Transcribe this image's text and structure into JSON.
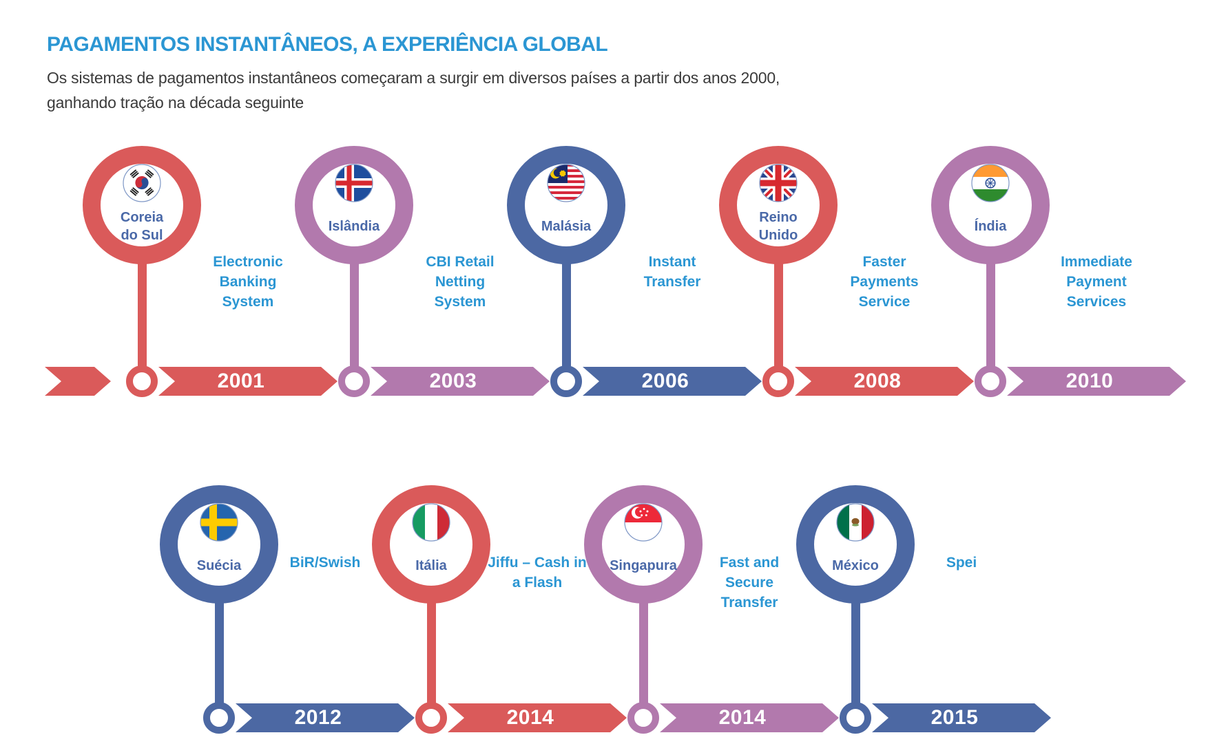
{
  "header": {
    "title": "PAGAMENTOS INSTANTÂNEOS, A EXPERIÊNCIA GLOBAL",
    "subtitle_line1": "Os sistemas de pagamentos instantâneos começaram a surgir em diversos países a partir dos anos 2000,",
    "subtitle_line2": "ganhando tração na década seguinte"
  },
  "palette": {
    "red": "#da5a5a",
    "purple": "#b279ad",
    "blue": "#4c68a3",
    "country_label_text": "#4a69a8",
    "accent_text": "#2b96d3",
    "subtitle_text": "#3a3a3a",
    "year_text": "#ffffff"
  },
  "timeline": {
    "rows": [
      {
        "has_leading_arrow": true,
        "items": [
          {
            "country": "Coreia do Sul",
            "country_lines": [
              "Coreia",
              "do Sul"
            ],
            "flag": "south-korea",
            "color": "red",
            "system": "Electronic Banking System",
            "system_lines": [
              "Electronic",
              "Banking",
              "System"
            ],
            "year": "2001"
          },
          {
            "country": "Islândia",
            "country_lines": [
              "Islândia"
            ],
            "flag": "iceland",
            "color": "purple",
            "system": "CBI Retail Netting System",
            "system_lines": [
              "CBI Retail",
              "Netting",
              "System"
            ],
            "year": "2003"
          },
          {
            "country": "Malásia",
            "country_lines": [
              "Malásia"
            ],
            "flag": "malaysia",
            "color": "blue",
            "system": "Instant Transfer",
            "system_lines": [
              "Instant",
              "Transfer"
            ],
            "year": "2006"
          },
          {
            "country": "Reino Unido",
            "country_lines": [
              "Reino",
              "Unido"
            ],
            "flag": "united-kingdom",
            "color": "red",
            "system": "Faster Payments Service",
            "system_lines": [
              "Faster",
              "Payments",
              "Service"
            ],
            "year": "2008"
          },
          {
            "country": "Índia",
            "country_lines": [
              "Índia"
            ],
            "flag": "india",
            "color": "purple",
            "system": "Immediate Payment Services",
            "system_lines": [
              "Immediate",
              "Payment",
              "Services"
            ],
            "year": "2010"
          }
        ]
      },
      {
        "has_leading_arrow": false,
        "items": [
          {
            "country": "Suécia",
            "country_lines": [
              "Suécia"
            ],
            "flag": "sweden",
            "color": "blue",
            "system": "BiR/Swish",
            "system_lines": [
              "BiR/Swish"
            ],
            "year": "2012"
          },
          {
            "country": "Itália",
            "country_lines": [
              "Itália"
            ],
            "flag": "italy",
            "color": "red",
            "system": "Jiffu – Cash in a Flash",
            "system_lines": [
              "Jiffu – Cash in",
              "a Flash"
            ],
            "year": "2014"
          },
          {
            "country": "Singapura",
            "country_lines": [
              "Singapura"
            ],
            "flag": "singapore",
            "color": "purple",
            "system": "Fast and Secure Transfer",
            "system_lines": [
              "Fast and",
              "Secure",
              "Transfer"
            ],
            "year": "2014"
          },
          {
            "country": "México",
            "country_lines": [
              "México"
            ],
            "flag": "mexico",
            "color": "blue",
            "system": "Spei",
            "system_lines": [
              "Spei"
            ],
            "year": "2015"
          }
        ]
      }
    ]
  }
}
